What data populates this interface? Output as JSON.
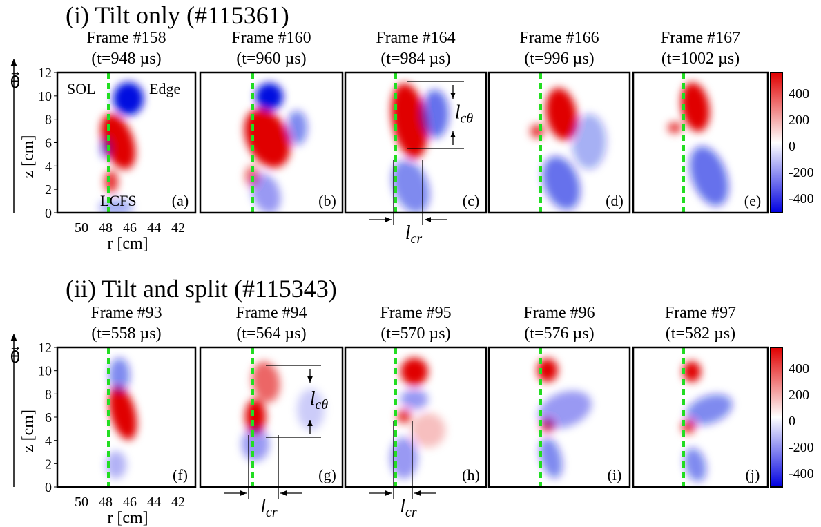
{
  "sections": [
    {
      "title": "(i) Tilt only (#115361)",
      "panels": [
        {
          "frame": "Frame #158",
          "time": "(t=948 µs)",
          "label": "(a)"
        },
        {
          "frame": "Frame #160",
          "time": "(t=960 µs)",
          "label": "(b)"
        },
        {
          "frame": "Frame #164",
          "time": "(t=984 µs)",
          "label": "(c)"
        },
        {
          "frame": "Frame #166",
          "time": "(t=996 µs)",
          "label": "(d)"
        },
        {
          "frame": "Frame #167",
          "time": "(t=1002 µs)",
          "label": "(e)"
        }
      ]
    },
    {
      "title": "(ii) Tilt and split (#115343)",
      "panels": [
        {
          "frame": "Frame #93",
          "time": "(t=558 µs)",
          "label": "(f)"
        },
        {
          "frame": "Frame #94",
          "time": "(t=564 µs)",
          "label": "(g)"
        },
        {
          "frame": "Frame #95",
          "time": "(t=570 µs)",
          "label": "(h)"
        },
        {
          "frame": "Frame #96",
          "time": "(t=576 µs)",
          "label": "(i)"
        },
        {
          "frame": "Frame #97",
          "time": "(t=582 µs)",
          "label": "(j)"
        }
      ]
    }
  ],
  "z_axis": {
    "label": "z [cm]",
    "ticks": [
      0,
      2,
      4,
      6,
      8,
      10,
      12
    ]
  },
  "r_axis": {
    "label": "r [cm]",
    "ticks": [
      50,
      48,
      46,
      44,
      42
    ]
  },
  "colorbar_ticks": [
    400,
    200,
    0,
    -200,
    -400
  ],
  "theta_label": "θ⃗",
  "region_labels": {
    "sol": "SOL",
    "edge": "Edge",
    "lcfs": "LCFS"
  },
  "length_labels": {
    "l_c_theta": {
      "main": "l",
      "sub": "cθ"
    },
    "l_cr": {
      "main": "l",
      "sub": "cr"
    }
  }
}
